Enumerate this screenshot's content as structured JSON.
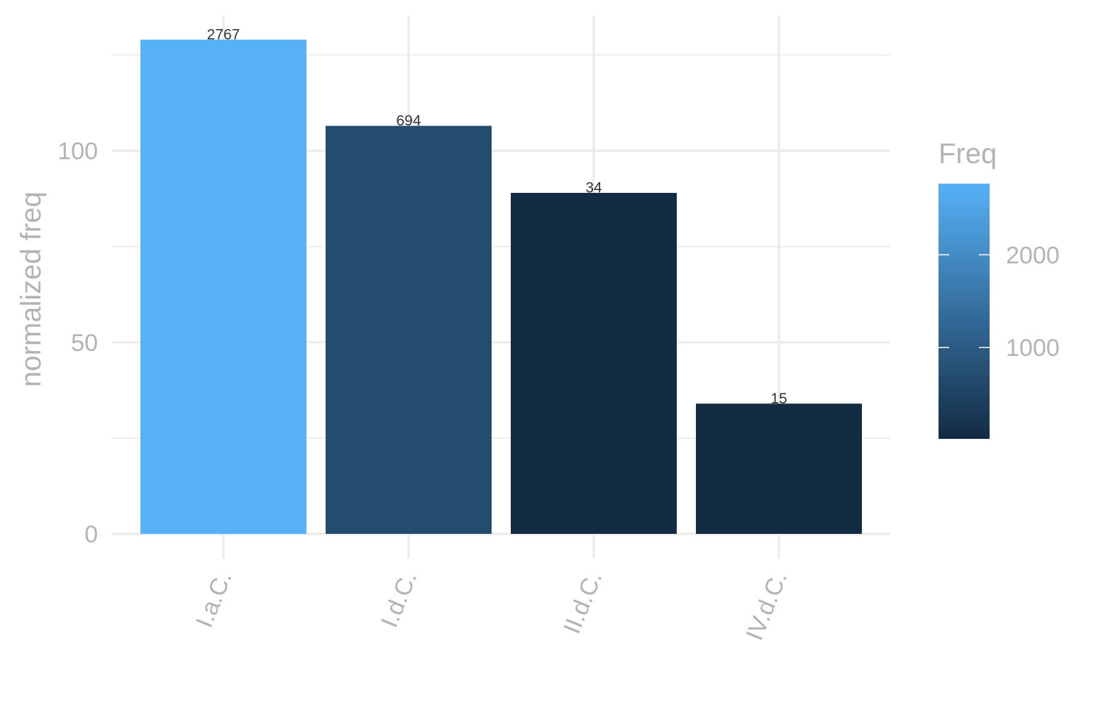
{
  "chart_data": {
    "type": "bar",
    "categories": [
      "I.a.C.",
      "I.d.C.",
      "II.d.C.",
      "IV.d.C."
    ],
    "values": [
      129,
      106.5,
      89,
      34
    ],
    "bar_labels": [
      "2767",
      "694",
      "34",
      "15"
    ],
    "freq": [
      2767,
      694,
      34,
      15
    ],
    "xlabel": "",
    "ylabel": "normalized freq",
    "ylim": [
      0,
      125
    ],
    "yticks": [
      0,
      50,
      100
    ],
    "yticks_minor": [
      25,
      75,
      125
    ],
    "grid": true,
    "legend": {
      "title": "Freq",
      "placement": "right",
      "type": "colorbar",
      "range": [
        15,
        2767
      ],
      "ticks": [
        1000,
        2000
      ],
      "tick_labels": [
        "1000",
        "2000"
      ],
      "color_low": "#132b43",
      "color_high": "#56b1f7"
    }
  }
}
